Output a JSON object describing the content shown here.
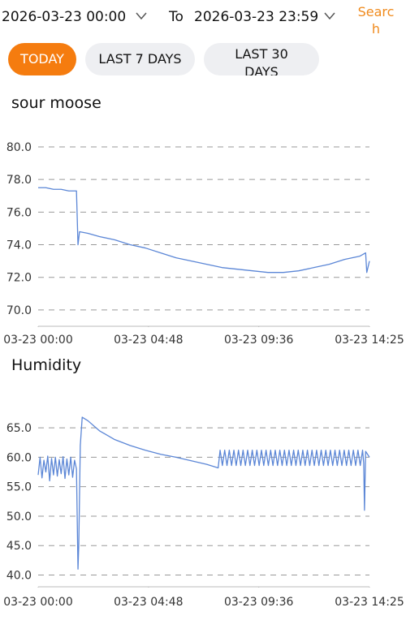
{
  "header": {
    "start": "2026-03-23 00:00",
    "to": "To",
    "end": "2026-03-23 23:59",
    "search": "Search"
  },
  "tabs": [
    "TODAY",
    "LAST 7 DAYS",
    "LAST 30 DAYS"
  ],
  "chart_data": [
    {
      "type": "line",
      "title": "sour moose",
      "color": "#5b86d6",
      "grid": true,
      "x": [
        0,
        20,
        40,
        60,
        80,
        100,
        104,
        108,
        130,
        160,
        200,
        240,
        280,
        320,
        360,
        400,
        440,
        480,
        520,
        560,
        600,
        640,
        680,
        720,
        760,
        800,
        840,
        855,
        858,
        865
      ],
      "values": [
        77.5,
        77.5,
        77.4,
        77.4,
        77.3,
        77.3,
        74.0,
        74.8,
        74.7,
        74.5,
        74.3,
        74.0,
        73.8,
        73.5,
        73.2,
        73.0,
        72.8,
        72.6,
        72.5,
        72.4,
        72.3,
        72.3,
        72.4,
        72.6,
        72.8,
        73.1,
        73.3,
        73.5,
        72.3,
        73.0
      ],
      "xlim": [
        0,
        865
      ],
      "xticks": [
        {
          "value": 0,
          "label": "03-23 00:00"
        },
        {
          "value": 288,
          "label": "03-23 04:48"
        },
        {
          "value": 576,
          "label": "03-23 09:36"
        },
        {
          "value": 865,
          "label": "03-23 14:25"
        }
      ],
      "ylim": [
        69,
        80
      ],
      "yticks": [
        {
          "value": 70,
          "label": "70.0"
        },
        {
          "value": 72,
          "label": "72.0"
        },
        {
          "value": 74,
          "label": "74.0"
        },
        {
          "value": 76,
          "label": "76.0"
        },
        {
          "value": 78,
          "label": "78.0"
        },
        {
          "value": 80,
          "label": "80.0"
        }
      ]
    },
    {
      "type": "line",
      "title": "Humidity",
      "color": "#5b86d6",
      "grid": true,
      "x": [
        0,
        5,
        10,
        15,
        20,
        25,
        30,
        35,
        40,
        45,
        50,
        55,
        60,
        65,
        70,
        75,
        80,
        85,
        90,
        95,
        100,
        104,
        106,
        110,
        115,
        130,
        160,
        200,
        240,
        280,
        320,
        360,
        400,
        440,
        470,
        475,
        481,
        487,
        493,
        499,
        505,
        511,
        517,
        523,
        529,
        535,
        541,
        547,
        553,
        559,
        565,
        571,
        577,
        583,
        589,
        595,
        601,
        607,
        613,
        619,
        625,
        631,
        637,
        643,
        649,
        655,
        661,
        667,
        673,
        679,
        685,
        691,
        697,
        703,
        709,
        715,
        721,
        727,
        733,
        739,
        745,
        751,
        757,
        763,
        769,
        775,
        781,
        787,
        793,
        799,
        805,
        811,
        817,
        823,
        829,
        835,
        841,
        847,
        850,
        852,
        855,
        860,
        865
      ],
      "values": [
        57,
        60,
        56.5,
        59.5,
        57.5,
        60.2,
        56,
        59.8,
        57,
        60,
        56.8,
        59.6,
        57.2,
        60.1,
        56.4,
        59.7,
        57,
        60,
        56.6,
        59.5,
        58,
        41,
        45,
        62,
        66.8,
        66.2,
        64.5,
        63,
        62,
        61.2,
        60.5,
        60,
        59.4,
        58.8,
        58.2,
        61.2,
        58.6,
        61.2,
        58.6,
        61.2,
        58.6,
        61.2,
        58.6,
        61.2,
        58.6,
        61.2,
        58.6,
        61.2,
        58.6,
        61.2,
        58.6,
        61.2,
        58.6,
        61.2,
        58.6,
        61.2,
        58.6,
        61.2,
        58.6,
        61.2,
        58.6,
        61.2,
        58.6,
        61.2,
        58.6,
        61.2,
        58.6,
        61.2,
        58.6,
        61.2,
        58.6,
        61.2,
        58.6,
        61.2,
        58.6,
        61.2,
        58.6,
        61.2,
        58.6,
        61.2,
        58.6,
        61.2,
        58.6,
        61.2,
        58.6,
        61.2,
        58.6,
        61.2,
        58.6,
        61.2,
        58.6,
        61.2,
        58.6,
        61.2,
        58.6,
        61.2,
        58.6,
        61.2,
        59,
        51,
        61,
        60.5,
        60
      ],
      "xlim": [
        0,
        865
      ],
      "xticks": [
        {
          "value": 0,
          "label": "03-23 00:00"
        },
        {
          "value": 288,
          "label": "03-23 04:48"
        },
        {
          "value": 576,
          "label": "03-23 09:36"
        },
        {
          "value": 865,
          "label": "03-23 14:25"
        }
      ],
      "ylim": [
        38,
        67.5
      ],
      "yticks": [
        {
          "value": 40,
          "label": "40.0"
        },
        {
          "value": 45,
          "label": "45.0"
        },
        {
          "value": 50,
          "label": "50.0"
        },
        {
          "value": 55,
          "label": "55.0"
        },
        {
          "value": 60,
          "label": "60.0"
        },
        {
          "value": 65,
          "label": "65.0"
        }
      ]
    }
  ]
}
